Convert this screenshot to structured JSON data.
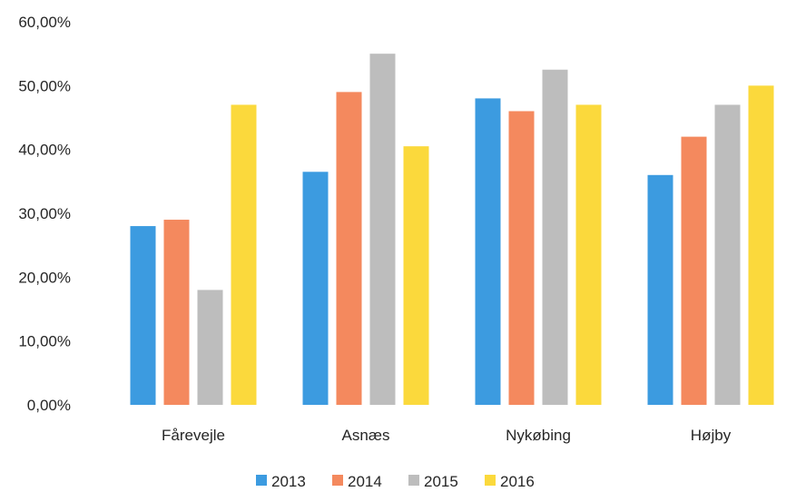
{
  "chart_data": {
    "type": "bar",
    "title": "",
    "xlabel": "",
    "ylabel": "",
    "categories": [
      "Fårevejle",
      "Asnæs",
      "Nykøbing",
      "Højby"
    ],
    "series": [
      {
        "name": "2013",
        "color": "#3C9BE0",
        "values": [
          0.28,
          0.365,
          0.48,
          0.36
        ]
      },
      {
        "name": "2014",
        "color": "#F4895E",
        "values": [
          0.29,
          0.49,
          0.46,
          0.42
        ]
      },
      {
        "name": "2015",
        "color": "#BDBDBD",
        "values": [
          0.18,
          0.55,
          0.525,
          0.47
        ]
      },
      {
        "name": "2016",
        "color": "#FBD93C",
        "values": [
          0.47,
          0.405,
          0.47,
          0.5
        ]
      }
    ],
    "ylim": [
      0,
      0.6
    ],
    "yticks": [
      {
        "value": 0.0,
        "label": "0,00%"
      },
      {
        "value": 0.1,
        "label": "10,00%"
      },
      {
        "value": 0.2,
        "label": "20,00%"
      },
      {
        "value": 0.3,
        "label": "30,00%"
      },
      {
        "value": 0.4,
        "label": "40,00%"
      },
      {
        "value": 0.5,
        "label": "50,00%"
      },
      {
        "value": 0.6,
        "label": "60,00%"
      }
    ],
    "grid": false,
    "legend": "bottom"
  }
}
